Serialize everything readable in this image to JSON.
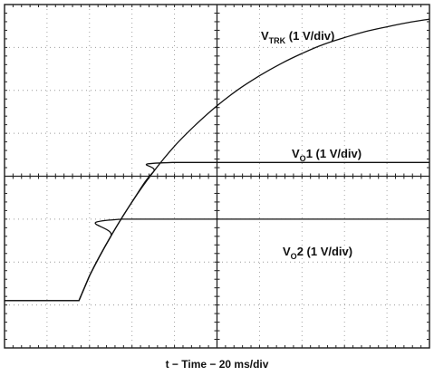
{
  "chart_data": {
    "type": "line",
    "title": "",
    "xlabel": "t − Time − 20 ms/div",
    "ylabel": "",
    "x_divisions": 10,
    "y_divisions": 8,
    "x_unit_per_div": "20 ms",
    "xlim": [
      0,
      10
    ],
    "grid": true,
    "series": [
      {
        "name_main": "V",
        "name_sub": "TRK",
        "name_suffix": " (1 V/div)",
        "scale_v_per_div": 1,
        "baseline_div": 0,
        "x_div": [
          0,
          1.75,
          2.0,
          2.5,
          3.0,
          3.5,
          4.0,
          4.5,
          5.0,
          5.5,
          6.0,
          6.5,
          7.0,
          7.5,
          8.0,
          8.5,
          9.0,
          9.5,
          10.0
        ],
        "y_div": [
          1.1,
          1.1,
          1.68,
          2.6,
          3.4,
          4.1,
          4.7,
          5.2,
          5.64,
          6.02,
          6.34,
          6.62,
          6.86,
          7.07,
          7.23,
          7.37,
          7.48,
          7.58,
          7.66
        ]
      },
      {
        "name_main": "V",
        "name_sub": "O",
        "name_suffix": "1 (1 V/div)",
        "scale_v_per_div": 1,
        "baseline_div": 0,
        "x_div": [
          0,
          1.75,
          2.0,
          2.5,
          3.0,
          3.5,
          3.95,
          10.0
        ],
        "y_div": [
          1.1,
          1.1,
          1.68,
          2.6,
          3.4,
          4.1,
          4.32,
          4.32
        ]
      },
      {
        "name_main": "V",
        "name_sub": "O",
        "name_suffix": "2 (1 V/div)",
        "scale_v_per_div": 1,
        "baseline_div": 0,
        "x_div": [
          0,
          1.75,
          2.0,
          2.5,
          2.78,
          10.0
        ],
        "y_div": [
          1.1,
          1.1,
          1.68,
          2.6,
          3.0,
          3.0
        ]
      }
    ]
  }
}
